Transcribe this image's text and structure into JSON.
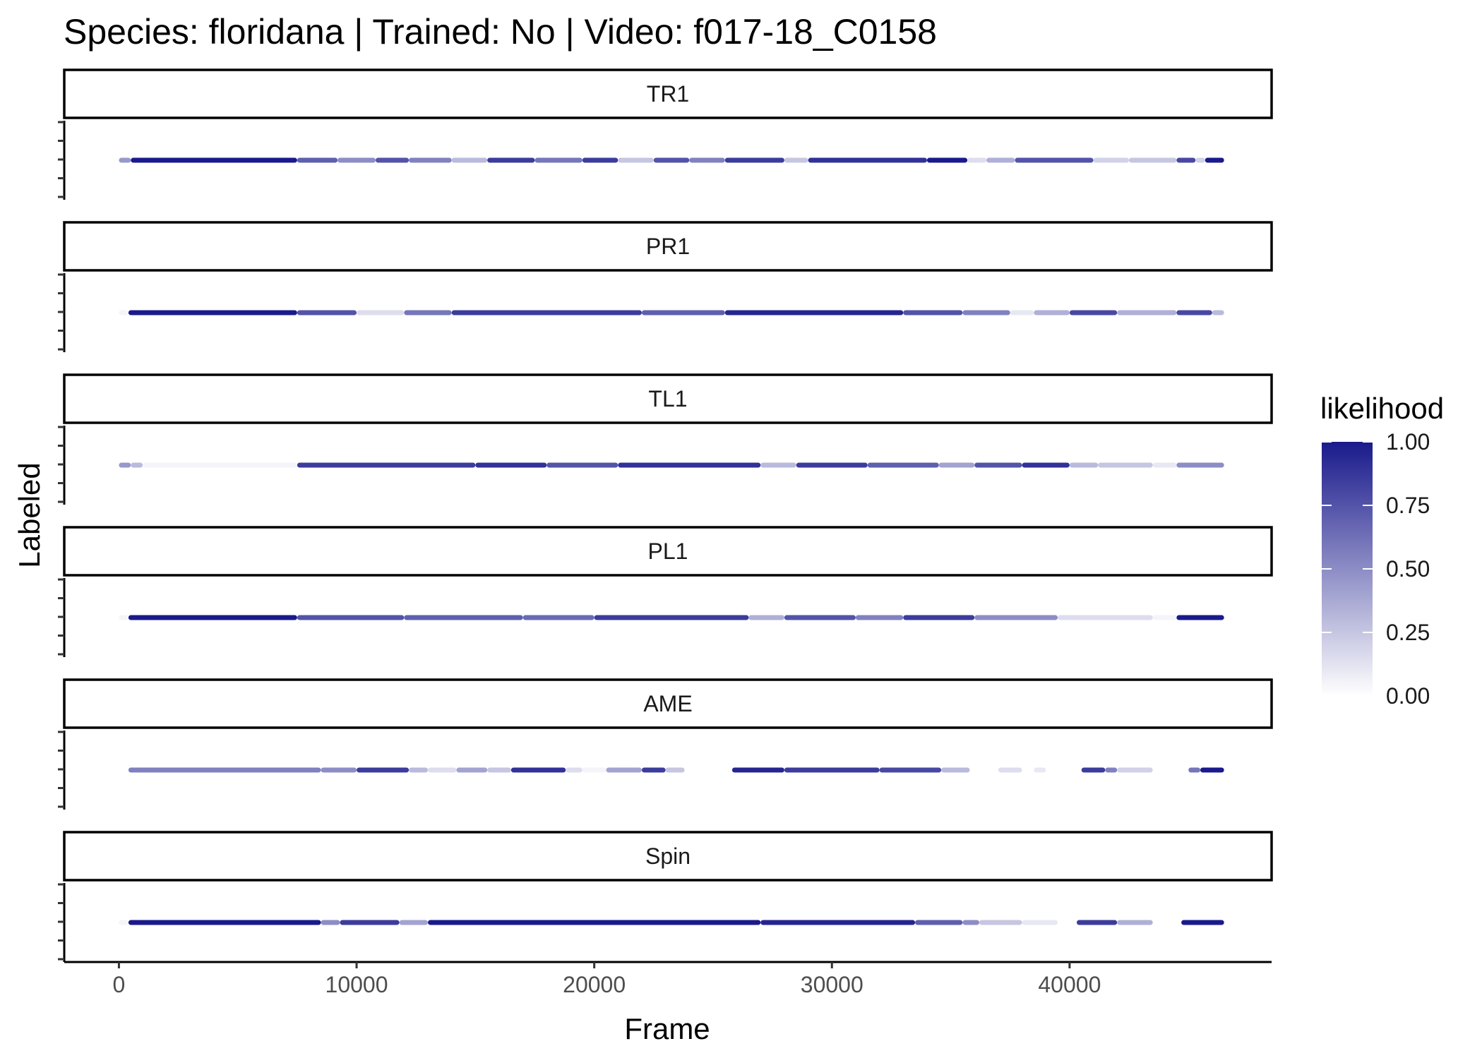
{
  "chart_data": {
    "type": "scatter",
    "title": "Species: floridana | Trained: No | Video: f017-18_C0158",
    "xlabel": "Frame",
    "ylabel": "Labeled",
    "xlim": [
      -2300,
      48500
    ],
    "x_ticks": [
      0,
      10000,
      20000,
      30000,
      40000
    ],
    "x_tick_labels": [
      "0",
      "10000",
      "20000",
      "30000",
      "40000"
    ],
    "legend": {
      "title": "likelihood",
      "placement": "right",
      "breaks": [
        1.0,
        0.75,
        0.5,
        0.25,
        0.0
      ],
      "labels": [
        "1.00",
        "0.75",
        "0.50",
        "0.25",
        "0.00"
      ],
      "color_low": "#ffffff",
      "color_high": "#1a1a8c"
    },
    "color_high": "#1a1a8c",
    "color_low": "#ffffff",
    "panels": [
      {
        "label": "TR1",
        "segments": [
          [
            0,
            500,
            0.45
          ],
          [
            500,
            7500,
            1.0
          ],
          [
            7500,
            9200,
            0.7
          ],
          [
            9200,
            10800,
            0.5
          ],
          [
            10800,
            12200,
            0.75
          ],
          [
            12200,
            14000,
            0.55
          ],
          [
            14000,
            15500,
            0.3
          ],
          [
            15500,
            17500,
            0.85
          ],
          [
            17500,
            19500,
            0.6
          ],
          [
            19500,
            21000,
            0.85
          ],
          [
            21000,
            22500,
            0.25
          ],
          [
            22500,
            24000,
            0.75
          ],
          [
            24000,
            25500,
            0.55
          ],
          [
            25500,
            28000,
            0.85
          ],
          [
            28000,
            29000,
            0.25
          ],
          [
            29000,
            34000,
            0.9
          ],
          [
            34000,
            35700,
            1.0
          ],
          [
            35700,
            36500,
            0.15
          ],
          [
            36500,
            37700,
            0.35
          ],
          [
            37700,
            41000,
            0.75
          ],
          [
            41000,
            42500,
            0.2
          ],
          [
            42500,
            44500,
            0.25
          ],
          [
            44500,
            45300,
            0.8
          ],
          [
            45300,
            45700,
            0.2
          ],
          [
            45700,
            46500,
            1.0
          ]
        ]
      },
      {
        "label": "PR1",
        "segments": [
          [
            0,
            400,
            0.05
          ],
          [
            400,
            7500,
            1.0
          ],
          [
            7500,
            10000,
            0.75
          ],
          [
            10000,
            12000,
            0.15
          ],
          [
            12000,
            14000,
            0.6
          ],
          [
            14000,
            22000,
            0.85
          ],
          [
            22000,
            25500,
            0.7
          ],
          [
            25500,
            33000,
            0.95
          ],
          [
            33000,
            35500,
            0.75
          ],
          [
            35500,
            37500,
            0.55
          ],
          [
            37500,
            38500,
            0.1
          ],
          [
            38500,
            40000,
            0.35
          ],
          [
            40000,
            42000,
            0.8
          ],
          [
            42000,
            44500,
            0.35
          ],
          [
            44500,
            46000,
            0.8
          ],
          [
            46000,
            46500,
            0.3
          ]
        ]
      },
      {
        "label": "TL1",
        "segments": [
          [
            0,
            500,
            0.45
          ],
          [
            500,
            1000,
            0.3
          ],
          [
            1000,
            7500,
            0.05
          ],
          [
            7500,
            15000,
            0.85
          ],
          [
            15000,
            18000,
            0.9
          ],
          [
            18000,
            21000,
            0.75
          ],
          [
            21000,
            27000,
            0.9
          ],
          [
            27000,
            28500,
            0.3
          ],
          [
            28500,
            31500,
            0.85
          ],
          [
            31500,
            34500,
            0.7
          ],
          [
            34500,
            36000,
            0.4
          ],
          [
            36000,
            38000,
            0.75
          ],
          [
            38000,
            40000,
            0.9
          ],
          [
            40000,
            41200,
            0.3
          ],
          [
            41200,
            43500,
            0.25
          ],
          [
            43500,
            44500,
            0.1
          ],
          [
            44500,
            46500,
            0.5
          ]
        ]
      },
      {
        "label": "PL1",
        "segments": [
          [
            0,
            400,
            0.05
          ],
          [
            400,
            7500,
            1.0
          ],
          [
            7500,
            12000,
            0.75
          ],
          [
            12000,
            17000,
            0.7
          ],
          [
            17000,
            20000,
            0.65
          ],
          [
            20000,
            26500,
            0.85
          ],
          [
            26500,
            28000,
            0.35
          ],
          [
            28000,
            31000,
            0.75
          ],
          [
            31000,
            33000,
            0.55
          ],
          [
            33000,
            36000,
            0.85
          ],
          [
            36000,
            39500,
            0.5
          ],
          [
            39500,
            43500,
            0.15
          ],
          [
            43500,
            44500,
            0.05
          ],
          [
            44500,
            46500,
            1.0
          ]
        ]
      },
      {
        "label": "AME",
        "segments": [
          [
            400,
            8500,
            0.55
          ],
          [
            8500,
            10000,
            0.5
          ],
          [
            10000,
            12200,
            0.85
          ],
          [
            12200,
            13000,
            0.3
          ],
          [
            13000,
            14200,
            0.15
          ],
          [
            14200,
            15500,
            0.4
          ],
          [
            15500,
            16500,
            0.25
          ],
          [
            16500,
            18800,
            0.9
          ],
          [
            18800,
            19500,
            0.15
          ],
          [
            19500,
            20500,
            0.05
          ],
          [
            20500,
            22000,
            0.4
          ],
          [
            22000,
            23000,
            0.85
          ],
          [
            23000,
            23800,
            0.25
          ],
          [
            25800,
            28000,
            0.95
          ],
          [
            28000,
            32000,
            0.85
          ],
          [
            32000,
            34600,
            0.8
          ],
          [
            34600,
            35800,
            0.3
          ],
          [
            37000,
            38000,
            0.15
          ],
          [
            38500,
            39000,
            0.1
          ],
          [
            40500,
            41500,
            0.85
          ],
          [
            41500,
            42000,
            0.55
          ],
          [
            42000,
            43500,
            0.2
          ],
          [
            45000,
            45500,
            0.6
          ],
          [
            45500,
            46500,
            1.0
          ]
        ]
      },
      {
        "label": "Spin",
        "segments": [
          [
            0,
            400,
            0.05
          ],
          [
            400,
            8500,
            1.0
          ],
          [
            8500,
            9300,
            0.5
          ],
          [
            9300,
            11800,
            0.85
          ],
          [
            11800,
            13000,
            0.4
          ],
          [
            13000,
            27000,
            1.0
          ],
          [
            27000,
            33500,
            0.95
          ],
          [
            33500,
            35500,
            0.7
          ],
          [
            35500,
            36200,
            0.5
          ],
          [
            36200,
            38000,
            0.25
          ],
          [
            38000,
            39500,
            0.1
          ],
          [
            40300,
            42000,
            0.85
          ],
          [
            42000,
            43500,
            0.35
          ],
          [
            44700,
            46500,
            1.0
          ]
        ]
      }
    ]
  }
}
